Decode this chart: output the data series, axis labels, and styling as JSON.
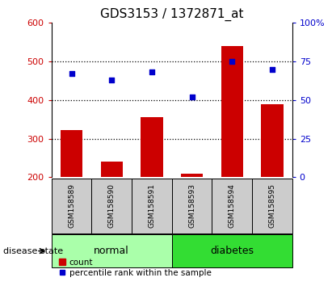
{
  "title": "GDS3153 / 1372871_at",
  "samples": [
    "GSM158589",
    "GSM158590",
    "GSM158591",
    "GSM158593",
    "GSM158594",
    "GSM158595"
  ],
  "bar_values": [
    323,
    240,
    355,
    210,
    540,
    390
  ],
  "percentile_values": [
    67,
    63,
    68,
    52,
    75,
    70
  ],
  "bar_color": "#cc0000",
  "dot_color": "#0000cc",
  "ylim_left": [
    200,
    600
  ],
  "ylim_right": [
    0,
    100
  ],
  "yticks_left": [
    200,
    300,
    400,
    500,
    600
  ],
  "yticks_right": [
    0,
    25,
    50,
    75,
    100
  ],
  "ytick_labels_right": [
    "0",
    "25",
    "50",
    "75",
    "100%"
  ],
  "groups": [
    {
      "label": "normal",
      "indices": [
        0,
        1,
        2
      ],
      "color": "#aaffaa"
    },
    {
      "label": "diabetes",
      "indices": [
        3,
        4,
        5
      ],
      "color": "#33dd33"
    }
  ],
  "group_label_prefix": "disease state",
  "legend_count_label": "count",
  "legend_percentile_label": "percentile rank within the sample",
  "bar_bottom": 200,
  "sample_box_color": "#cccccc",
  "figsize": [
    4.11,
    3.54
  ],
  "dpi": 100
}
